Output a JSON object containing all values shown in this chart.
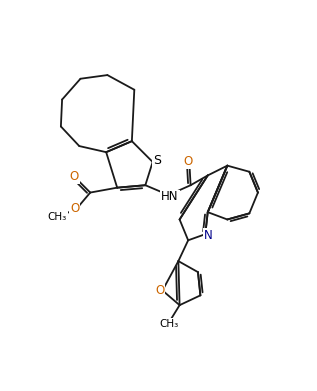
{
  "background": "#ffffff",
  "line_color": "#1a1a1a",
  "S_color": "#000000",
  "N_color": "#00008B",
  "O_color": "#cc6600",
  "font_size": 8.5,
  "line_width": 1.3,
  "xlim": [
    0,
    10
  ],
  "ylim": [
    0,
    12.3
  ]
}
